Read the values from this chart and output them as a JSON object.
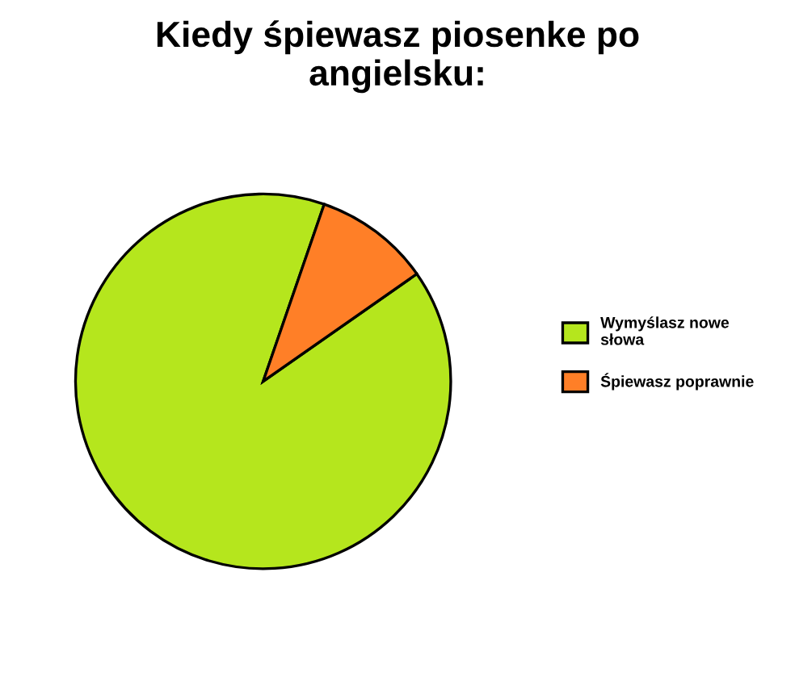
{
  "chart_data": {
    "type": "pie",
    "title": "Kiedy śpiewasz piosenke po\nangielsku:",
    "categories": [
      "Wymyślasz nowe\nsłowa",
      "Śpiewasz poprawnie"
    ],
    "values": [
      90,
      10
    ],
    "colors": [
      "#b5e61d",
      "#ff7f27"
    ],
    "legend": "right"
  }
}
